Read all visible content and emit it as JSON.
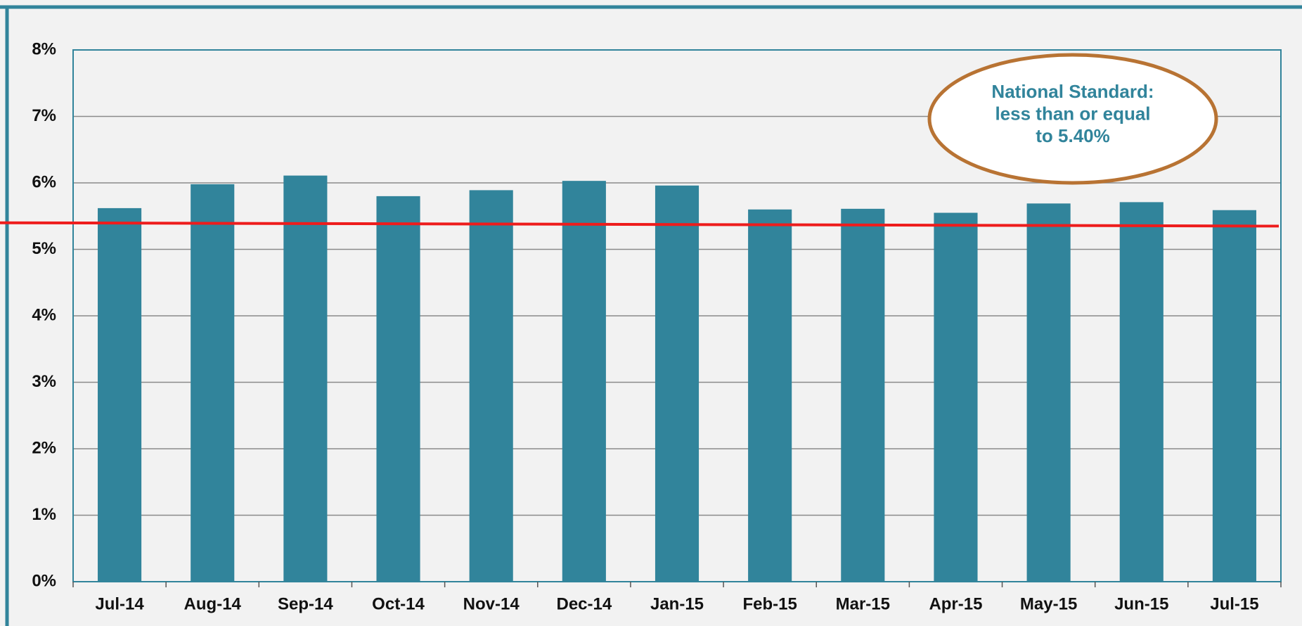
{
  "chart_data": {
    "type": "bar",
    "categories": [
      "Jul-14",
      "Aug-14",
      "Sep-14",
      "Oct-14",
      "Nov-14",
      "Dec-14",
      "Jan-15",
      "Feb-15",
      "Mar-15",
      "Apr-15",
      "May-15",
      "Jun-15",
      "Jul-15"
    ],
    "values": [
      5.62,
      5.98,
      6.11,
      5.8,
      5.89,
      6.03,
      5.96,
      5.6,
      5.61,
      5.55,
      5.69,
      5.71,
      5.59
    ],
    "color": "#31849b",
    "ylim": [
      0,
      8
    ],
    "yticks": [
      {
        "value": 0,
        "label": "0%"
      },
      {
        "value": 1,
        "label": "1%"
      },
      {
        "value": 2,
        "label": "2%"
      },
      {
        "value": 3,
        "label": "3%"
      },
      {
        "value": 4,
        "label": "4%"
      },
      {
        "value": 5,
        "label": "5%"
      },
      {
        "value": 6,
        "label": "6%"
      },
      {
        "value": 7,
        "label": "7%"
      },
      {
        "value": 8,
        "label": "8%"
      }
    ],
    "grid": true,
    "reference_line": {
      "values": [
        5.4,
        5.35
      ],
      "color": "#ee1c1c"
    },
    "annotation": [
      "National Standard:",
      "less than or equal",
      "to 5.40%"
    ]
  }
}
